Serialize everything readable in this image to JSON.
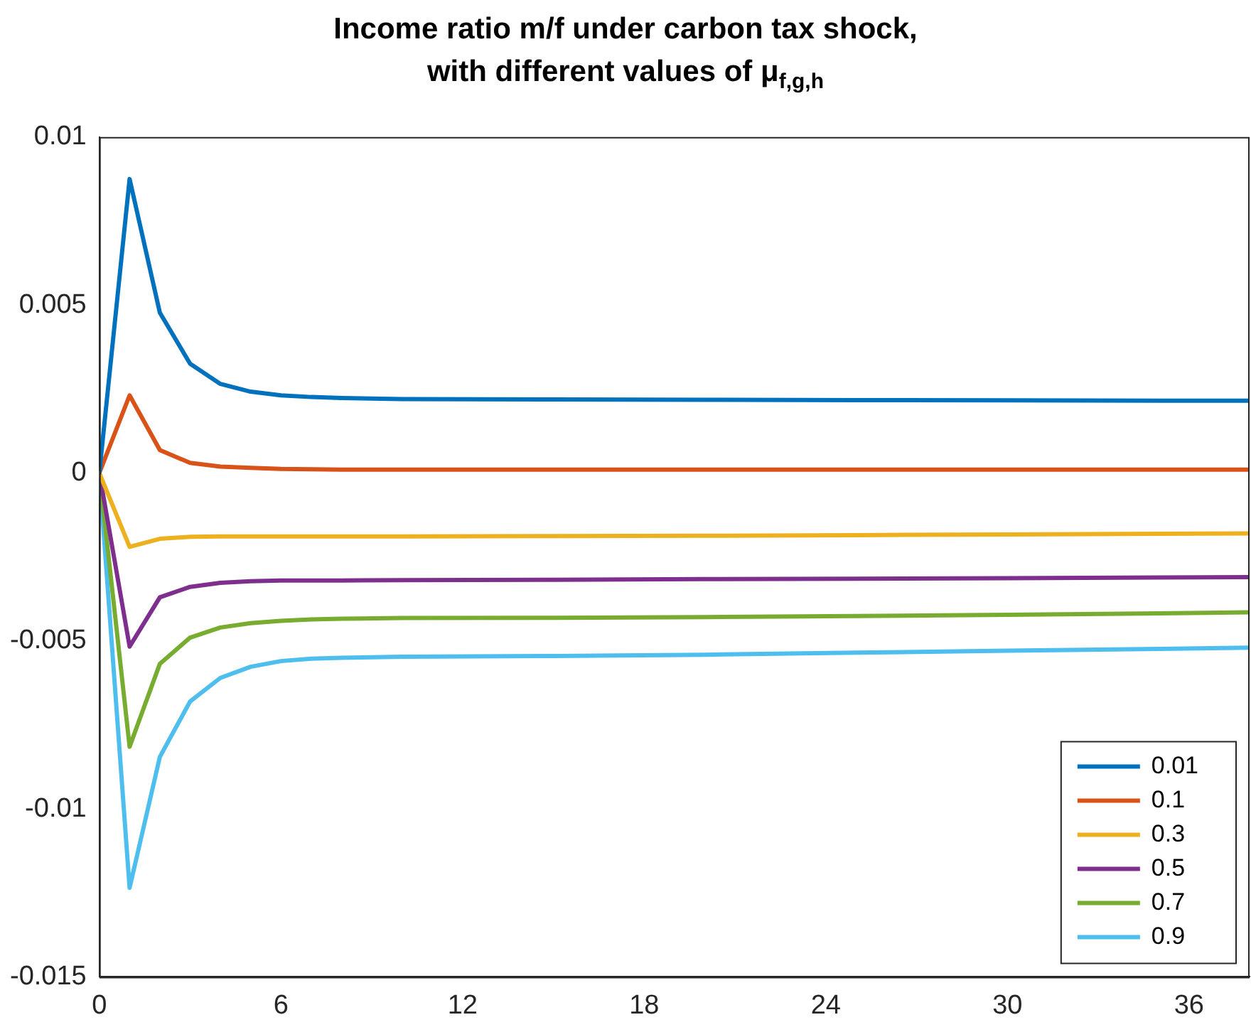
{
  "chart_data": {
    "type": "line",
    "title": "Income ratio m/f under carbon tax shock, with different values of μ$_{f,g,h}$",
    "x": [
      0,
      1,
      2,
      3,
      4,
      5,
      6,
      7,
      8,
      10,
      15,
      20,
      25,
      30,
      35,
      38
    ],
    "xlim": [
      0,
      38
    ],
    "xticks": [
      0,
      6,
      12,
      18,
      24,
      30,
      36
    ],
    "ylim": [
      -0.015,
      0.01
    ],
    "yticks": [
      -0.015,
      -0.01,
      -0.005,
      0,
      0.005,
      0.01
    ],
    "grid": false,
    "legend": "bottom right",
    "marker": "none",
    "line_style": "solid",
    "series": [
      {
        "name": "0.01",
        "color": "#0072bd",
        "values": [
          0,
          0.00875,
          0.00477,
          0.00325,
          0.00265,
          0.00242,
          0.00231,
          0.00226,
          0.00223,
          0.0022,
          0.00219,
          0.00218,
          0.00217,
          0.00216,
          0.00215,
          0.00215
        ]
      },
      {
        "name": "0.1",
        "color": "#d95319",
        "values": [
          0,
          0.00231,
          0.00068,
          0.0003,
          0.00019,
          0.00015,
          0.00012,
          0.00011,
          0.0001,
          0.0001,
          0.0001,
          0.0001,
          0.0001,
          0.0001,
          0.0001,
          0.0001
        ]
      },
      {
        "name": "0.3",
        "color": "#edb120",
        "values": [
          0,
          -0.0022,
          -0.00196,
          -0.0019,
          -0.00189,
          -0.00189,
          -0.00189,
          -0.00189,
          -0.00189,
          -0.00189,
          -0.00188,
          -0.00187,
          -0.00185,
          -0.00183,
          -0.00181,
          -0.0018
        ]
      },
      {
        "name": "0.5",
        "color": "#7e2f8e",
        "values": [
          0,
          -0.00517,
          -0.0037,
          -0.00339,
          -0.00327,
          -0.00322,
          -0.0032,
          -0.0032,
          -0.0032,
          -0.00319,
          -0.00318,
          -0.00316,
          -0.00315,
          -0.00313,
          -0.00311,
          -0.0031
        ]
      },
      {
        "name": "0.7",
        "color": "#77ac30",
        "values": [
          0,
          -0.00815,
          -0.00568,
          -0.0049,
          -0.0046,
          -0.00447,
          -0.0044,
          -0.00436,
          -0.00434,
          -0.00432,
          -0.00431,
          -0.00429,
          -0.00426,
          -0.00422,
          -0.00418,
          -0.00415
        ]
      },
      {
        "name": "0.9",
        "color": "#4dbeee",
        "values": [
          0,
          -0.01235,
          -0.00845,
          -0.0068,
          -0.0061,
          -0.00577,
          -0.0056,
          -0.00553,
          -0.0055,
          -0.00547,
          -0.00545,
          -0.00541,
          -0.00535,
          -0.00529,
          -0.00524,
          -0.0052
        ]
      }
    ]
  }
}
